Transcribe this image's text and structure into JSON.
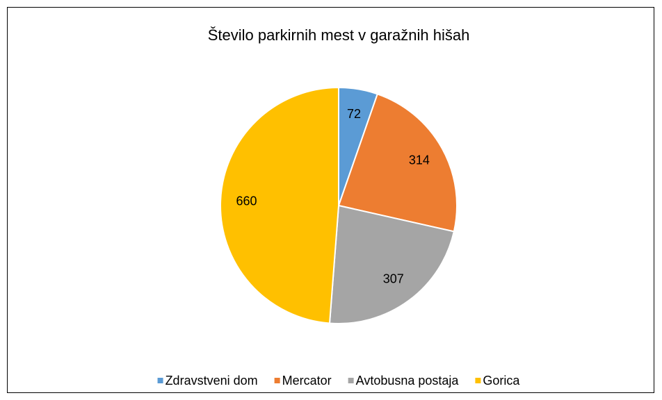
{
  "chart_data": {
    "type": "pie",
    "title": "Število parkirnih mest v garažnih hišah",
    "categories": [
      "Zdravstveni dom",
      "Mercator",
      "Avtobusna postaja",
      "Gorica"
    ],
    "values": [
      72,
      314,
      307,
      660
    ],
    "colors": [
      "#5b9bd5",
      "#ed7d31",
      "#a5a5a5",
      "#ffc000"
    ],
    "legend": "bottom"
  }
}
